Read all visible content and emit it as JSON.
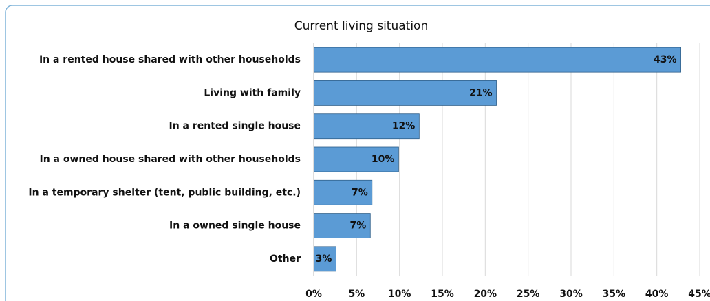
{
  "chart_data": {
    "type": "bar",
    "orientation": "horizontal",
    "title": "Current living situation",
    "categories": [
      "In a rented house shared with other households",
      "Living with family",
      "In a rented single house",
      "In a owned house shared with other households",
      "In a temporary shelter (tent, public building, etc.)",
      "In a owned single house",
      "Other"
    ],
    "values": [
      42.8,
      21.3,
      12.3,
      9.9,
      6.8,
      6.6,
      2.6
    ],
    "value_labels": [
      "43%",
      "21%",
      "12%",
      "10%",
      "7%",
      "7%",
      "3%"
    ],
    "color": "#5b9bd5",
    "xlim": [
      0,
      45
    ],
    "xticks": [
      {
        "value": 0,
        "label": "0%"
      },
      {
        "value": 5,
        "label": "5%"
      },
      {
        "value": 10,
        "label": "10%"
      },
      {
        "value": 15,
        "label": "15%"
      },
      {
        "value": 20,
        "label": "20%"
      },
      {
        "value": 25,
        "label": "25%"
      },
      {
        "value": 30,
        "label": "30%"
      },
      {
        "value": 35,
        "label": "35%"
      },
      {
        "value": 40,
        "label": "40%"
      },
      {
        "value": 45,
        "label": "45%"
      }
    ],
    "grid": true
  }
}
